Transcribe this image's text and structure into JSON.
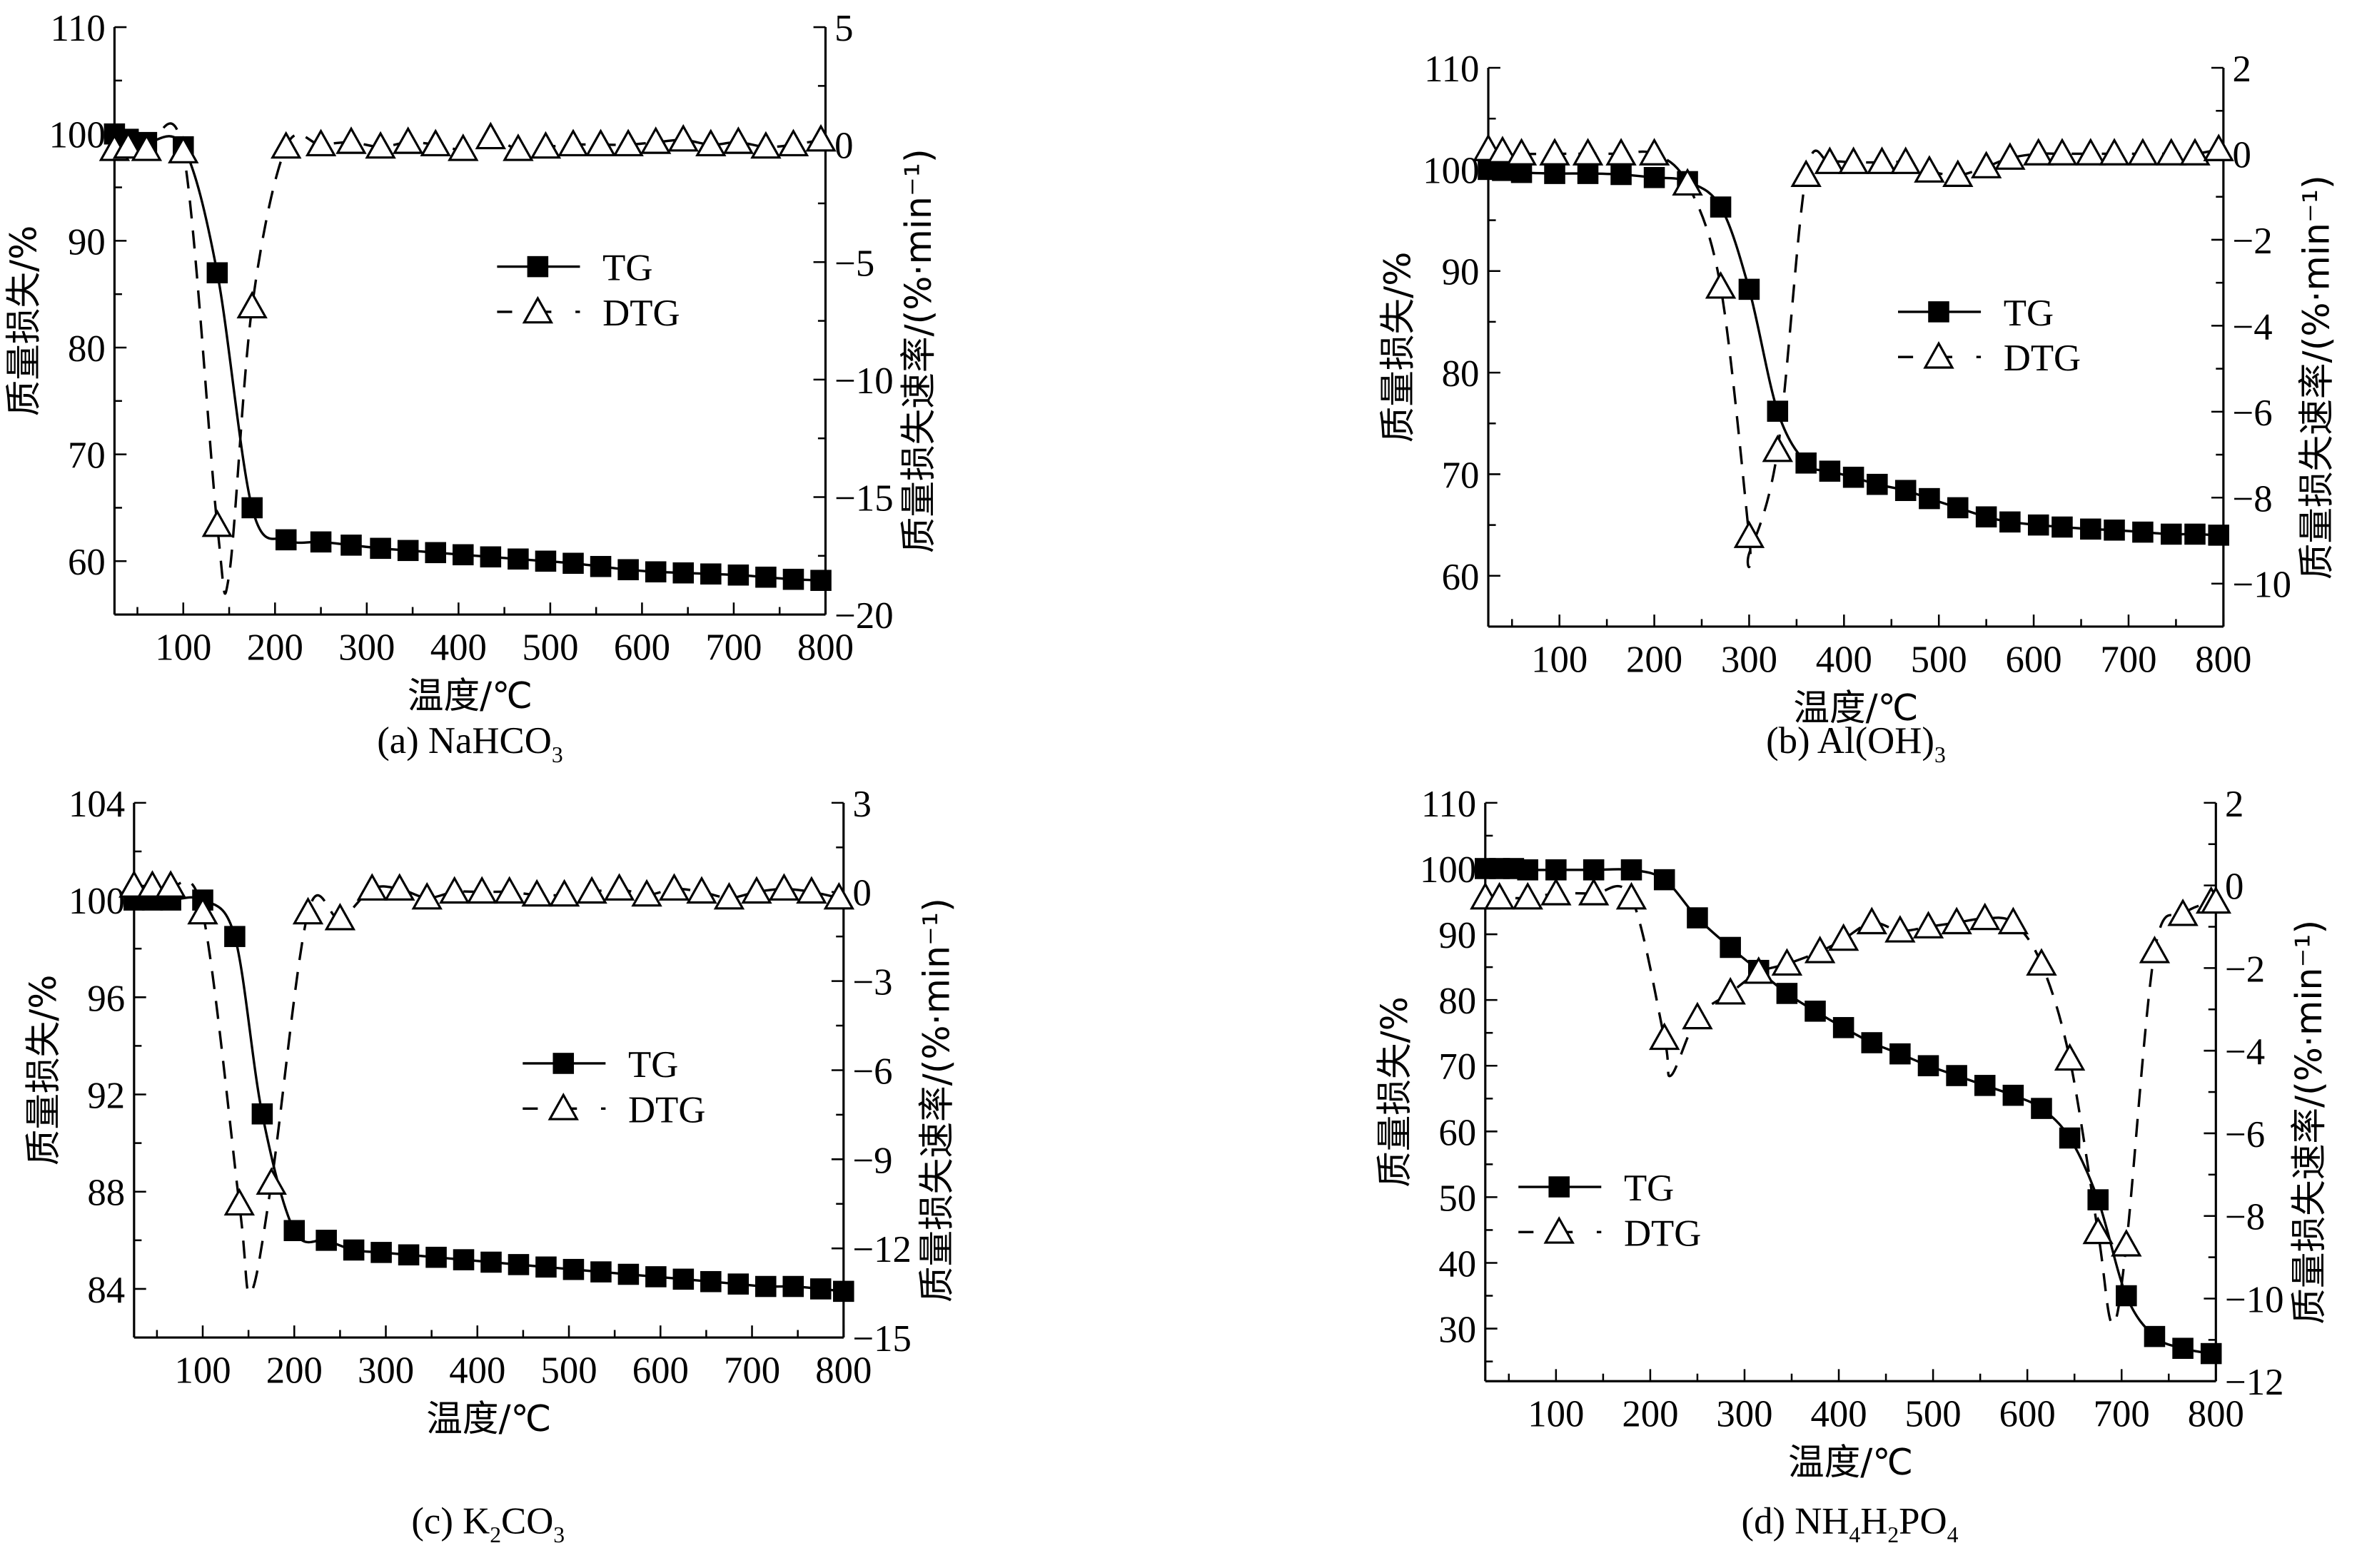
{
  "colors": {
    "axis": "#000000",
    "tg_marker": "#000000",
    "dtg_marker_fill": "#ffffff"
  },
  "chart_data": [
    {
      "id": "a",
      "type": "line",
      "caption": [
        {
          "t": "(a) NaHCO"
        },
        {
          "t": "3",
          "sub": true
        }
      ],
      "xlabel": "温度/℃",
      "ylabel": "质量损失/%",
      "y2label": "质量损失速率/(%·min⁻¹)",
      "xlim": [
        25,
        800
      ],
      "ylim": [
        55,
        110
      ],
      "y2lim": [
        -20,
        5
      ],
      "xticks": [
        100,
        200,
        300,
        400,
        500,
        600,
        700,
        800
      ],
      "yticks": [
        60,
        70,
        80,
        90,
        100,
        110
      ],
      "y2ticks": [
        -20,
        -15,
        -10,
        -5,
        0,
        5
      ],
      "legend": {
        "placement": "center",
        "entries": [
          "TG",
          "DTG"
        ]
      },
      "series": [
        {
          "name": "TG",
          "axis": "left",
          "marker": "filled-square",
          "line": "solid",
          "x": [
            25,
            40,
            60,
            100,
            137,
            175,
            212,
            250,
            283,
            315,
            345,
            375,
            405,
            435,
            465,
            495,
            525,
            555,
            585,
            615,
            645,
            675,
            705,
            735,
            765,
            795
          ],
          "y": [
            100,
            99.5,
            99.2,
            98.8,
            87,
            65,
            62,
            61.8,
            61.5,
            61.2,
            61,
            60.8,
            60.6,
            60.4,
            60.2,
            60,
            59.8,
            59.5,
            59.2,
            59,
            58.9,
            58.8,
            58.7,
            58.5,
            58.3,
            58.2
          ]
        },
        {
          "name": "DTG",
          "axis": "right",
          "marker": "open-triangle",
          "line": "dashed",
          "x": [
            25,
            40,
            60,
            100,
            137,
            175,
            212,
            250,
            283,
            315,
            345,
            375,
            405,
            435,
            465,
            495,
            525,
            555,
            585,
            615,
            645,
            675,
            705,
            735,
            765,
            795
          ],
          "y": [
            -0.2,
            -0.1,
            -0.2,
            -0.3,
            -16.2,
            -6.9,
            -0.1,
            0,
            0.1,
            -0.1,
            0.1,
            0,
            -0.2,
            0.3,
            -0.2,
            -0.1,
            0,
            0,
            0,
            0.1,
            0.2,
            0,
            0.1,
            -0.1,
            0,
            0.2
          ],
          "curve_minimum": {
            "x": 150,
            "y": -18.3
          }
        }
      ]
    },
    {
      "id": "b",
      "type": "line",
      "caption": [
        {
          "t": "(b) Al(OH)"
        },
        {
          "t": "3",
          "sub": true
        }
      ],
      "xlabel": "温度/℃",
      "ylabel": "质量损失/%",
      "y2label": "质量损失速率/(%·min⁻¹)",
      "xlim": [
        25,
        800
      ],
      "ylim": [
        55,
        110
      ],
      "y2lim": [
        -11,
        2
      ],
      "xticks": [
        100,
        200,
        300,
        400,
        500,
        600,
        700,
        800
      ],
      "yticks": [
        60,
        70,
        80,
        90,
        100,
        110
      ],
      "y2ticks": [
        -10,
        -8,
        -6,
        -4,
        -2,
        0,
        2
      ],
      "legend": {
        "placement": "center-right",
        "entries": [
          "TG",
          "DTG"
        ]
      },
      "series": [
        {
          "name": "TG",
          "axis": "left",
          "marker": "filled-square",
          "line": "solid",
          "x": [
            25,
            40,
            60,
            95,
            130,
            165,
            200,
            235,
            270,
            300,
            330,
            360,
            385,
            410,
            435,
            465,
            490,
            520,
            550,
            575,
            605,
            630,
            660,
            685,
            715,
            745,
            770,
            795
          ],
          "y": [
            100,
            99.9,
            99.7,
            99.6,
            99.6,
            99.5,
            99.2,
            98.8,
            96.3,
            88.2,
            76.2,
            71.1,
            70.3,
            69.7,
            69.0,
            68.4,
            67.6,
            66.7,
            65.8,
            65.3,
            65.0,
            64.8,
            64.6,
            64.5,
            64.3,
            64.1,
            64.1,
            64.0
          ]
        },
        {
          "name": "DTG",
          "axis": "right",
          "marker": "open-triangle",
          "line": "dashed",
          "x": [
            25,
            40,
            60,
            95,
            130,
            165,
            200,
            235,
            270,
            300,
            330,
            360,
            385,
            410,
            440,
            465,
            490,
            520,
            550,
            575,
            605,
            630,
            660,
            685,
            715,
            745,
            770,
            795
          ],
          "y": [
            0.1,
            0.05,
            0,
            0,
            0,
            0,
            0,
            -0.7,
            -3.1,
            -8.9,
            -6.9,
            -0.5,
            -0.2,
            -0.2,
            -0.2,
            -0.2,
            -0.4,
            -0.5,
            -0.3,
            -0.1,
            0,
            0,
            0,
            0,
            0,
            0,
            0,
            0.1
          ],
          "curve_minimum": {
            "x": 300,
            "y": -9.3
          }
        }
      ]
    },
    {
      "id": "c",
      "type": "line",
      "caption": [
        {
          "t": "(c) K"
        },
        {
          "t": "2",
          "sub": true
        },
        {
          "t": "CO"
        },
        {
          "t": "3",
          "sub": true
        }
      ],
      "xlabel": "温度/℃",
      "ylabel": "质量损失/%",
      "y2label": "质量损失速率/(%·min⁻¹)",
      "xlim": [
        25,
        800
      ],
      "ylim": [
        82,
        104
      ],
      "y2lim": [
        -15,
        3
      ],
      "xticks": [
        100,
        200,
        300,
        400,
        500,
        600,
        700,
        800
      ],
      "yticks": [
        84,
        88,
        92,
        96,
        100,
        104
      ],
      "y2ticks": [
        -15,
        -12,
        -9,
        -6,
        -3,
        0,
        3
      ],
      "legend": {
        "placement": "center",
        "entries": [
          "TG",
          "DTG"
        ]
      },
      "series": [
        {
          "name": "TG",
          "axis": "left",
          "marker": "filled-square",
          "line": "solid",
          "x": [
            25,
            45,
            65,
            100,
            135,
            165,
            200,
            235,
            265,
            295,
            325,
            355,
            385,
            415,
            445,
            475,
            505,
            535,
            565,
            595,
            625,
            655,
            685,
            715,
            745,
            775,
            800
          ],
          "y": [
            100,
            100,
            100,
            100,
            98.5,
            91.2,
            86.4,
            86,
            85.6,
            85.5,
            85.4,
            85.3,
            85.2,
            85.1,
            85,
            84.9,
            84.8,
            84.7,
            84.6,
            84.5,
            84.4,
            84.3,
            84.2,
            84.1,
            84.1,
            84,
            83.9
          ]
        },
        {
          "name": "DTG",
          "axis": "right",
          "marker": "open-triangle",
          "line": "dashed",
          "x": [
            25,
            45,
            65,
            100,
            140,
            175,
            215,
            250,
            285,
            315,
            345,
            375,
            405,
            435,
            465,
            495,
            525,
            555,
            585,
            615,
            645,
            675,
            705,
            735,
            765,
            795
          ],
          "y": [
            0.2,
            0.2,
            0.2,
            -0.7,
            -10.5,
            -9.8,
            -0.7,
            -0.9,
            0.1,
            0.1,
            -0.2,
            0,
            0,
            0,
            -0.1,
            -0.1,
            0,
            0.1,
            -0.1,
            0.1,
            0,
            -0.2,
            0,
            0.1,
            0,
            -0.2
          ],
          "curve_minimum": {
            "x": 152,
            "y": -13.5
          }
        }
      ]
    },
    {
      "id": "d",
      "type": "line",
      "caption": [
        {
          "t": "(d) NH"
        },
        {
          "t": "4",
          "sub": true
        },
        {
          "t": "H"
        },
        {
          "t": "2",
          "sub": true
        },
        {
          "t": "PO"
        },
        {
          "t": "4",
          "sub": true
        }
      ],
      "xlabel": "温度/℃",
      "ylabel": "质量损失/%",
      "y2label": "质量损失速率/(%·min⁻¹)",
      "xlim": [
        25,
        800
      ],
      "ylim": [
        22,
        110
      ],
      "y2lim": [
        -12,
        2
      ],
      "xticks": [
        100,
        200,
        300,
        400,
        500,
        600,
        700,
        800
      ],
      "yticks": [
        30,
        40,
        50,
        60,
        70,
        80,
        90,
        100,
        110
      ],
      "y2ticks": [
        -12,
        -10,
        -8,
        -6,
        -4,
        -2,
        0,
        2
      ],
      "legend": {
        "placement": "center-left",
        "entries": [
          "TG",
          "DTG"
        ]
      },
      "series": [
        {
          "name": "TG",
          "axis": "left",
          "marker": "filled-square",
          "line": "solid",
          "x": [
            25,
            40,
            55,
            70,
            100,
            140,
            180,
            215,
            250,
            285,
            315,
            345,
            375,
            405,
            435,
            465,
            495,
            525,
            555,
            585,
            615,
            645,
            675,
            705,
            735,
            765,
            795
          ],
          "y": [
            100,
            100,
            100,
            99.8,
            99.8,
            99.8,
            99.8,
            98.3,
            92.5,
            88,
            84.5,
            81,
            78.3,
            75.8,
            73.5,
            71.8,
            70,
            68.5,
            67,
            65.5,
            63.5,
            59,
            49.6,
            35,
            28.8,
            27,
            26.2
          ]
        },
        {
          "name": "DTG",
          "axis": "right",
          "marker": "open-triangle",
          "line": "dashed",
          "x": [
            25,
            40,
            70,
            100,
            140,
            180,
            215,
            250,
            285,
            315,
            345,
            380,
            405,
            435,
            465,
            495,
            525,
            555,
            585,
            615,
            645,
            675,
            705,
            735,
            765,
            795,
            800
          ],
          "y": [
            -0.3,
            -0.3,
            -0.3,
            -0.2,
            -0.2,
            -0.3,
            -3.7,
            -3.2,
            -2.6,
            -2.1,
            -1.9,
            -1.6,
            -1.3,
            -0.9,
            -1.1,
            -1.0,
            -0.9,
            -0.8,
            -0.9,
            -1.9,
            -4.2,
            -8.4,
            -8.7,
            -1.6,
            -0.7,
            -0.4,
            -0.4
          ],
          "curve_minimum": [
            {
              "x": 222,
              "y": -4.6
            },
            {
              "x": 690,
              "y": -10.6
            }
          ]
        }
      ]
    }
  ]
}
